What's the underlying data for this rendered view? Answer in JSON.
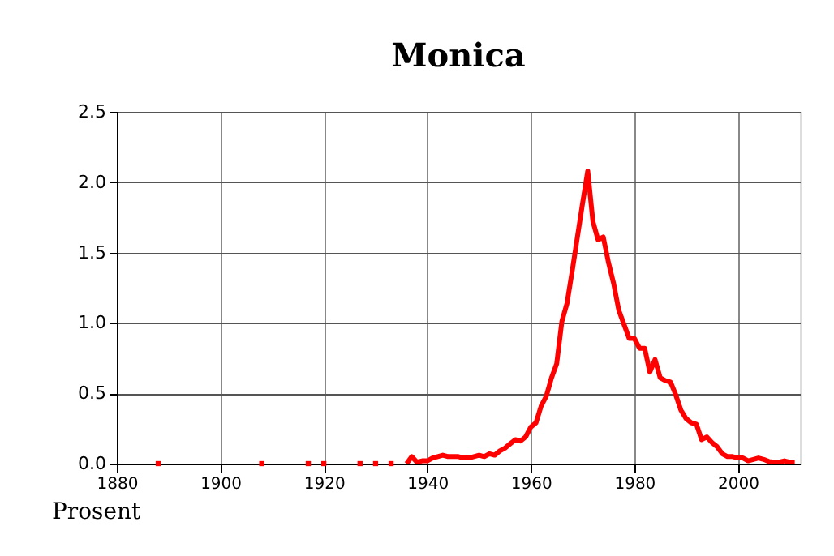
{
  "chart_data": {
    "type": "line",
    "title": "Monica",
    "ylabel": "Prosent",
    "x": [
      1888,
      1889,
      1907,
      1908,
      1910,
      1916,
      1917,
      1918,
      1919,
      1920,
      1921,
      1926,
      1927,
      1928,
      1929,
      1930,
      1931,
      1932,
      1933,
      1934,
      1935,
      1936,
      1937,
      1938,
      1939,
      1940,
      1941,
      1942,
      1943,
      1944,
      1945,
      1946,
      1947,
      1948,
      1949,
      1950,
      1951,
      1952,
      1953,
      1954,
      1955,
      1956,
      1957,
      1958,
      1959,
      1960,
      1961,
      1962,
      1963,
      1964,
      1965,
      1966,
      1967,
      1968,
      1969,
      1970,
      1971,
      1972,
      1973,
      1974,
      1975,
      1976,
      1977,
      1978,
      1979,
      1980,
      1981,
      1982,
      1983,
      1984,
      1985,
      1986,
      1987,
      1988,
      1989,
      1990,
      1991,
      1992,
      1993,
      1994,
      1995,
      1996,
      1997,
      1998,
      1999,
      2000,
      2001,
      2002,
      2003,
      2004,
      2005,
      2006,
      2007,
      2008,
      2009,
      2010,
      2011
    ],
    "series": [
      {
        "color": "#ff0000",
        "values": [
          0.0,
          null,
          null,
          0.0,
          null,
          null,
          0.0,
          null,
          null,
          0.0,
          null,
          null,
          0.0,
          null,
          null,
          0.0,
          null,
          null,
          0.0,
          null,
          null,
          0.0,
          0.05,
          0.01,
          0.02,
          0.02,
          0.04,
          0.05,
          0.06,
          0.05,
          0.05,
          0.05,
          0.04,
          0.04,
          0.05,
          0.06,
          0.05,
          0.07,
          0.06,
          0.09,
          0.11,
          0.14,
          0.17,
          0.16,
          0.19,
          0.26,
          0.29,
          0.41,
          0.48,
          0.61,
          0.71,
          1.01,
          1.14,
          1.37,
          1.61,
          1.85,
          2.08,
          1.72,
          1.59,
          1.61,
          1.43,
          1.28,
          1.09,
          0.99,
          0.89,
          0.89,
          0.82,
          0.82,
          0.65,
          0.74,
          0.61,
          0.59,
          0.58,
          0.49,
          0.38,
          0.32,
          0.29,
          0.28,
          0.17,
          0.19,
          0.15,
          0.12,
          0.07,
          0.05,
          0.05,
          0.04,
          0.04,
          0.02,
          0.03,
          0.04,
          0.03,
          0.015,
          0.01,
          0.01,
          0.02,
          0.01,
          0.01
        ]
      }
    ],
    "xlim": [
      1880,
      2012
    ],
    "xticks": [
      1880,
      1900,
      1920,
      1940,
      1960,
      1980,
      2000
    ],
    "ylim": [
      0,
      2.5
    ],
    "yticks": [
      {
        "value": 0,
        "label": "0.0"
      },
      {
        "value": 0.5,
        "label": "0.5"
      },
      {
        "value": 1,
        "label": "1.0"
      },
      {
        "value": 1.5,
        "label": "1.5"
      },
      {
        "value": 2,
        "label": "2.0"
      },
      {
        "value": 2.5,
        "label": "2.5"
      }
    ],
    "grid": true,
    "line_style": "solid"
  }
}
